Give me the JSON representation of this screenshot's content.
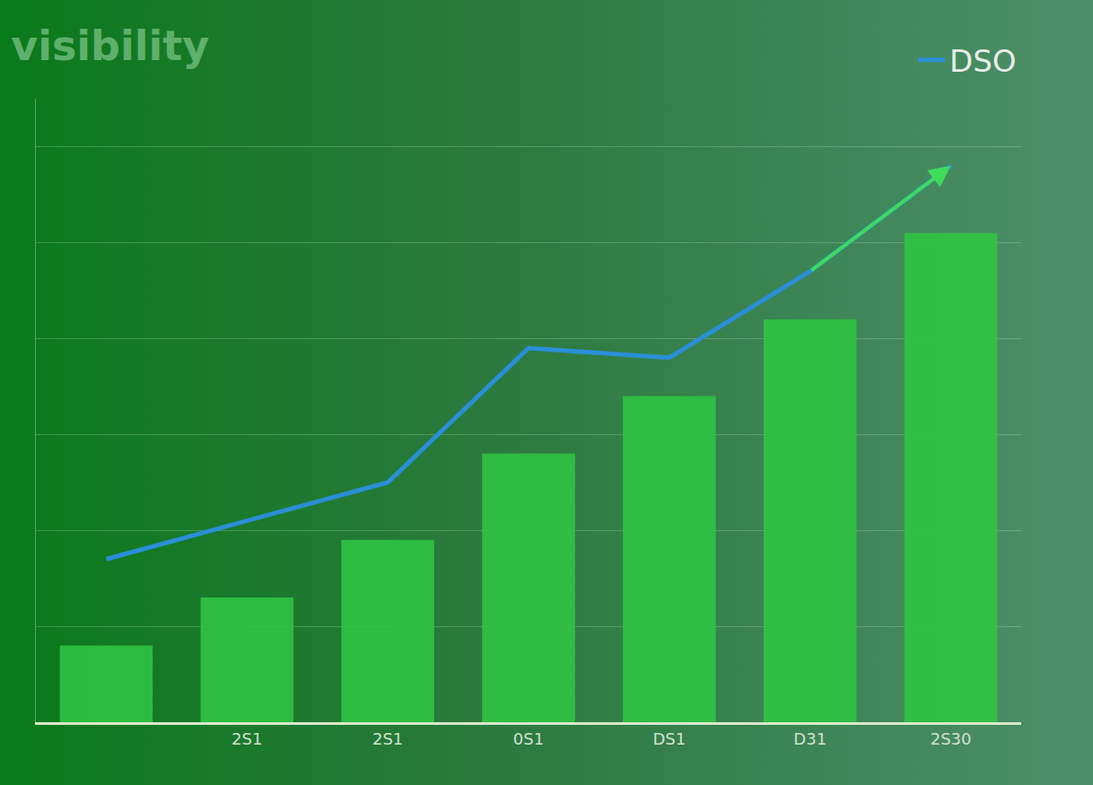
{
  "chart_data": {
    "type": "bar",
    "title": "visibility",
    "categories": [
      null,
      "2S1",
      "2S1",
      "0S1",
      "DS1",
      "D31",
      "2S30"
    ],
    "series": [
      {
        "type": "bar",
        "color": "#2fc443",
        "values": [
          0.8,
          1.3,
          1.9,
          2.8,
          3.4,
          4.2,
          5.1
        ]
      },
      {
        "type": "line",
        "name": "DSO",
        "color": "#2a8fd6",
        "values": [
          1.7,
          2.1,
          2.5,
          3.9,
          3.8,
          4.7,
          5.8
        ]
      }
    ],
    "ylim": [
      0,
      6.5
    ],
    "yticks": [
      0,
      1,
      2,
      3,
      4,
      5,
      6
    ],
    "grid": true,
    "legend": "top right",
    "tick_labels": "x"
  }
}
